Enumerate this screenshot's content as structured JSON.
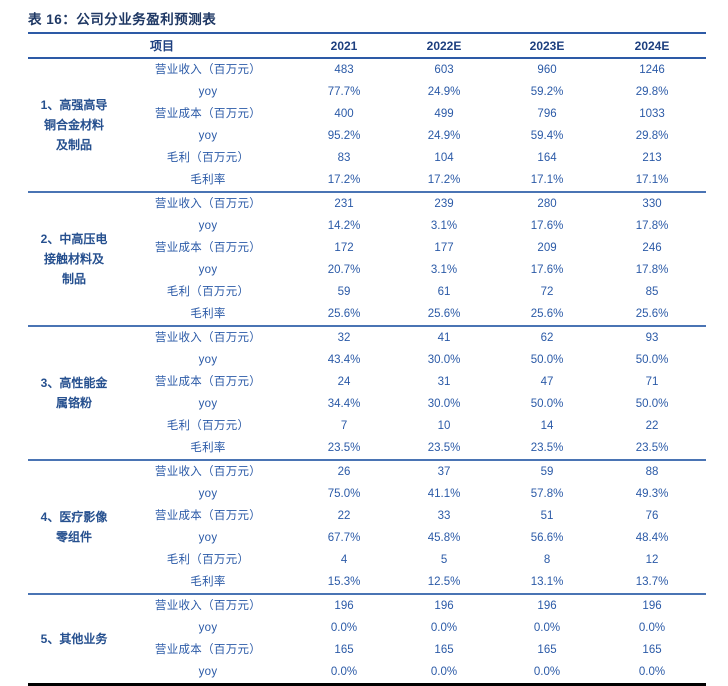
{
  "title": "表 16：公司分业务盈利预测表",
  "colors": {
    "title_navy": "#1f3864",
    "text_blue": "#2b5aa7",
    "header_blue": "#1d3f7f",
    "rule_blue": "#2d5aa6",
    "separator_blue": "#4a74b4",
    "bottom_rule_black": "#000000"
  },
  "table": {
    "item_header": "项目",
    "year_headers": [
      "2021",
      "2022E",
      "2023E",
      "2024E"
    ],
    "groups": [
      {
        "name": "1、高强高导铜合金材料及制品",
        "name_lines": [
          "1、高强高导",
          "铜合金材料",
          "及制品"
        ],
        "rows": [
          {
            "label": "营业收入（百万元）",
            "values": [
              "483",
              "603",
              "960",
              "1246"
            ]
          },
          {
            "label": "yoy",
            "values": [
              "77.7%",
              "24.9%",
              "59.2%",
              "29.8%"
            ]
          },
          {
            "label": "营业成本（百万元）",
            "values": [
              "400",
              "499",
              "796",
              "1033"
            ]
          },
          {
            "label": "yoy",
            "values": [
              "95.2%",
              "24.9%",
              "59.4%",
              "29.8%"
            ]
          },
          {
            "label": "毛利（百万元）",
            "values": [
              "83",
              "104",
              "164",
              "213"
            ]
          },
          {
            "label": "毛利率",
            "values": [
              "17.2%",
              "17.2%",
              "17.1%",
              "17.1%"
            ]
          }
        ]
      },
      {
        "name": "2、中高压电接触材料及制品",
        "name_lines": [
          "2、中高压电",
          "接触材料及",
          "制品"
        ],
        "rows": [
          {
            "label": "营业收入（百万元）",
            "values": [
              "231",
              "239",
              "280",
              "330"
            ]
          },
          {
            "label": "yoy",
            "values": [
              "14.2%",
              "3.1%",
              "17.6%",
              "17.8%"
            ]
          },
          {
            "label": "营业成本（百万元）",
            "values": [
              "172",
              "177",
              "209",
              "246"
            ]
          },
          {
            "label": "yoy",
            "values": [
              "20.7%",
              "3.1%",
              "17.6%",
              "17.8%"
            ]
          },
          {
            "label": "毛利（百万元）",
            "values": [
              "59",
              "61",
              "72",
              "85"
            ]
          },
          {
            "label": "毛利率",
            "values": [
              "25.6%",
              "25.6%",
              "25.6%",
              "25.6%"
            ]
          }
        ]
      },
      {
        "name": "3、高性能金属铬粉",
        "name_lines": [
          "3、高性能金",
          "属铬粉"
        ],
        "rows": [
          {
            "label": "营业收入（百万元）",
            "values": [
              "32",
              "41",
              "62",
              "93"
            ]
          },
          {
            "label": "yoy",
            "values": [
              "43.4%",
              "30.0%",
              "50.0%",
              "50.0%"
            ]
          },
          {
            "label": "营业成本（百万元）",
            "values": [
              "24",
              "31",
              "47",
              "71"
            ]
          },
          {
            "label": "yoy",
            "values": [
              "34.4%",
              "30.0%",
              "50.0%",
              "50.0%"
            ]
          },
          {
            "label": "毛利（百万元）",
            "values": [
              "7",
              "10",
              "14",
              "22"
            ]
          },
          {
            "label": "毛利率",
            "values": [
              "23.5%",
              "23.5%",
              "23.5%",
              "23.5%"
            ]
          }
        ]
      },
      {
        "name": "4、医疗影像零组件",
        "name_lines": [
          "4、医疗影像",
          "零组件"
        ],
        "rows": [
          {
            "label": "营业收入（百万元）",
            "values": [
              "26",
              "37",
              "59",
              "88"
            ]
          },
          {
            "label": "yoy",
            "values": [
              "75.0%",
              "41.1%",
              "57.8%",
              "49.3%"
            ]
          },
          {
            "label": "营业成本（百万元）",
            "values": [
              "22",
              "33",
              "51",
              "76"
            ]
          },
          {
            "label": "yoy",
            "values": [
              "67.7%",
              "45.8%",
              "56.6%",
              "48.4%"
            ]
          },
          {
            "label": "毛利（百万元）",
            "values": [
              "4",
              "5",
              "8",
              "12"
            ]
          },
          {
            "label": "毛利率",
            "values": [
              "15.3%",
              "12.5%",
              "13.1%",
              "13.7%"
            ]
          }
        ]
      },
      {
        "name": "5、其他业务",
        "name_lines": [
          "5、其他业务"
        ],
        "rows": [
          {
            "label": "营业收入（百万元）",
            "values": [
              "196",
              "196",
              "196",
              "196"
            ]
          },
          {
            "label": "yoy",
            "values": [
              "0.0%",
              "0.0%",
              "0.0%",
              "0.0%"
            ]
          },
          {
            "label": "营业成本（百万元）",
            "values": [
              "165",
              "165",
              "165",
              "165"
            ]
          },
          {
            "label": "yoy",
            "values": [
              "0.0%",
              "0.0%",
              "0.0%",
              "0.0%"
            ]
          }
        ]
      }
    ]
  }
}
